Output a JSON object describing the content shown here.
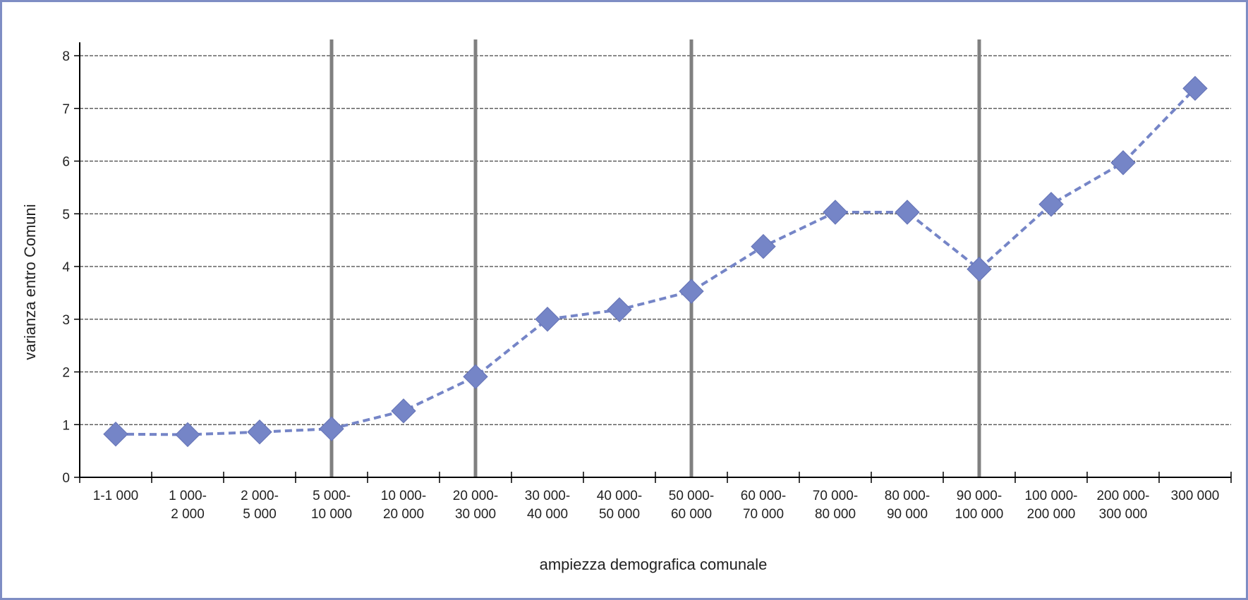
{
  "chart_data": {
    "type": "line",
    "title": "",
    "xlabel": "ampiezza demografica comunale",
    "ylabel": "varianza entro Comuni",
    "ylim": [
      0,
      8
    ],
    "yticks": [
      0,
      1,
      2,
      3,
      4,
      5,
      6,
      7,
      8
    ],
    "grid": true,
    "categories": [
      [
        "1-1 000"
      ],
      [
        "1 000-",
        "2 000"
      ],
      [
        "2 000-",
        "5 000"
      ],
      [
        "5 000-",
        "10 000"
      ],
      [
        "10 000-",
        "20 000"
      ],
      [
        "20 000-",
        "30 000"
      ],
      [
        "30 000-",
        "40 000"
      ],
      [
        "40 000-",
        "50 000"
      ],
      [
        "50 000-",
        "60 000"
      ],
      [
        "60 000-",
        "70 000"
      ],
      [
        "70 000-",
        "80 000"
      ],
      [
        "80 000-",
        "90 000"
      ],
      [
        "90 000-",
        "100 000"
      ],
      [
        "100 000-",
        "200 000"
      ],
      [
        "200 000-",
        "300 000"
      ],
      [
        "300 000"
      ]
    ],
    "values": [
      0.82,
      0.81,
      0.86,
      0.92,
      1.26,
      1.91,
      3.0,
      3.18,
      3.53,
      4.38,
      5.03,
      5.03,
      3.95,
      5.18,
      5.97,
      7.38
    ],
    "vertical_lines_at_category_index": [
      3,
      5,
      8,
      12
    ],
    "colors": {
      "series": "#7585c7",
      "grid": "#444444",
      "vertical_lines": "#808080",
      "frame": "#7f8dc4"
    }
  }
}
